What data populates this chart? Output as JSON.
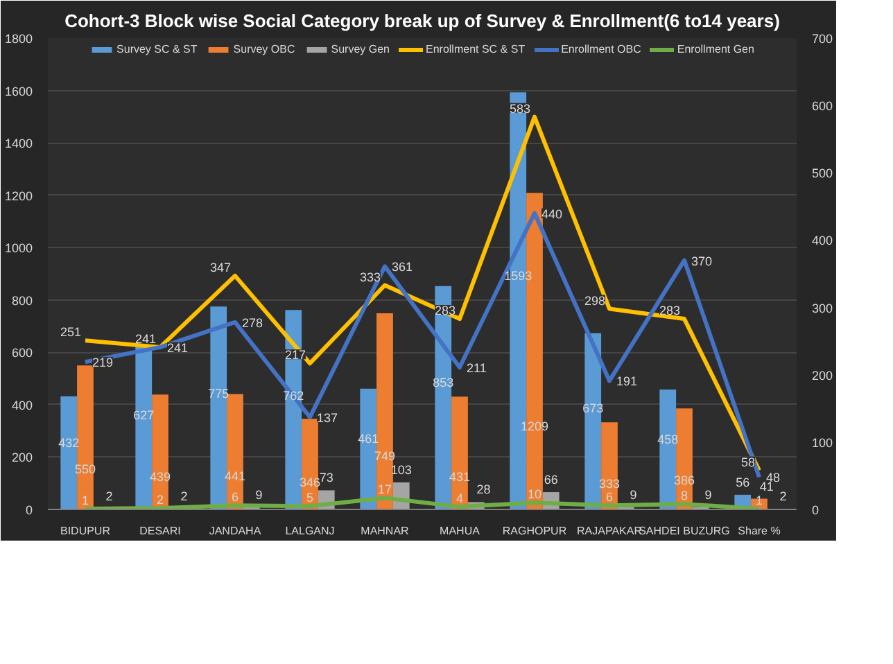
{
  "chart_data": {
    "type": "bar",
    "title": "Cohort-3 Block wise Social Category break up of Survey & Enrollment(6 to14 years)",
    "categories": [
      "BIDUPUR",
      "DESARI",
      "JANDAHA",
      "LALGANJ",
      "MAHNAR",
      "MAHUA",
      "RAGHOPUR",
      "RAJAPAKAR",
      "SAHDEI BUZURG",
      "Share %"
    ],
    "series": [
      {
        "name": "Survey SC & ST",
        "color": "#5b9bd5",
        "values": [
          432,
          627,
          775,
          762,
          461,
          853,
          1593,
          673,
          458,
          56
        ]
      },
      {
        "name": "Survey OBC",
        "color": "#ed7d31",
        "values": [
          550,
          439,
          441,
          346,
          749,
          431,
          1209,
          333,
          386,
          41
        ]
      },
      {
        "name": "Survey Gen",
        "color": "#a5a5a5",
        "values": [
          2,
          2,
          9,
          73,
          103,
          28,
          66,
          9,
          9,
          2
        ]
      },
      {
        "name": "Enrollment SC & ST",
        "type": "line",
        "axis": "y2",
        "color": "#ffc000",
        "values": [
          251,
          241,
          347,
          217,
          333,
          283,
          583,
          298,
          283,
          58
        ]
      },
      {
        "name": "Enrollment OBC",
        "type": "line",
        "axis": "y2",
        "color": "#4472c4",
        "values": [
          219,
          241,
          278,
          137,
          361,
          211,
          440,
          191,
          370,
          48
        ]
      },
      {
        "name": "Enrollment Gen",
        "type": "line",
        "axis": "y2",
        "color": "#70ad47",
        "values": [
          1,
          2,
          6,
          5,
          17,
          4,
          10,
          6,
          8,
          1
        ]
      }
    ],
    "ylim": [
      0,
      1800
    ],
    "yticks": [
      0,
      200,
      400,
      600,
      800,
      1000,
      1200,
      1400,
      1600,
      1800
    ],
    "y2lim": [
      0,
      700
    ],
    "y2ticks": [
      0,
      100,
      200,
      300,
      400,
      500,
      600,
      700
    ],
    "data_labels": true,
    "grid": "y",
    "legend": "top"
  }
}
